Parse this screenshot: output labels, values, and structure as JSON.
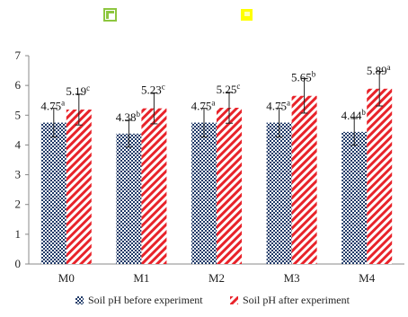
{
  "chart_data": {
    "type": "bar",
    "title": "",
    "xlabel": "",
    "ylabel": "",
    "ylim": [
      0,
      7
    ],
    "yticks": [
      0,
      1,
      2,
      3,
      4,
      5,
      6,
      7
    ],
    "grid": false,
    "legend_position": "bottom",
    "categories": [
      "M0",
      "M1",
      "M2",
      "M3",
      "M4"
    ],
    "series": [
      {
        "name": "Soil pH before experiment",
        "pattern": "checkerboard",
        "color": "#1f3a68",
        "values": [
          4.75,
          4.38,
          4.75,
          4.75,
          4.44
        ],
        "errors": [
          0.48,
          0.45,
          0.48,
          0.48,
          0.45
        ],
        "labels": [
          "4.75",
          "4.38",
          "4.75",
          "4.75",
          "4.44"
        ],
        "letters": [
          "a",
          "b",
          "a",
          "a",
          "b"
        ]
      },
      {
        "name": "Soil pH after experiment",
        "pattern": "diagonal-stripes",
        "color": "#e8232a",
        "values": [
          5.19,
          5.23,
          5.25,
          5.65,
          5.89
        ],
        "errors": [
          0.52,
          0.52,
          0.52,
          0.58,
          0.58
        ],
        "labels": [
          "5.19",
          "5.23",
          "5.25",
          "5.65",
          "5.89"
        ],
        "letters": [
          "c",
          "c",
          "c",
          "b",
          "a"
        ]
      }
    ],
    "stray_icons": [
      {
        "name": "green-square-icon",
        "color": "#8dc63f"
      },
      {
        "name": "yellow-square-icon",
        "color": "#ffff00"
      }
    ]
  }
}
